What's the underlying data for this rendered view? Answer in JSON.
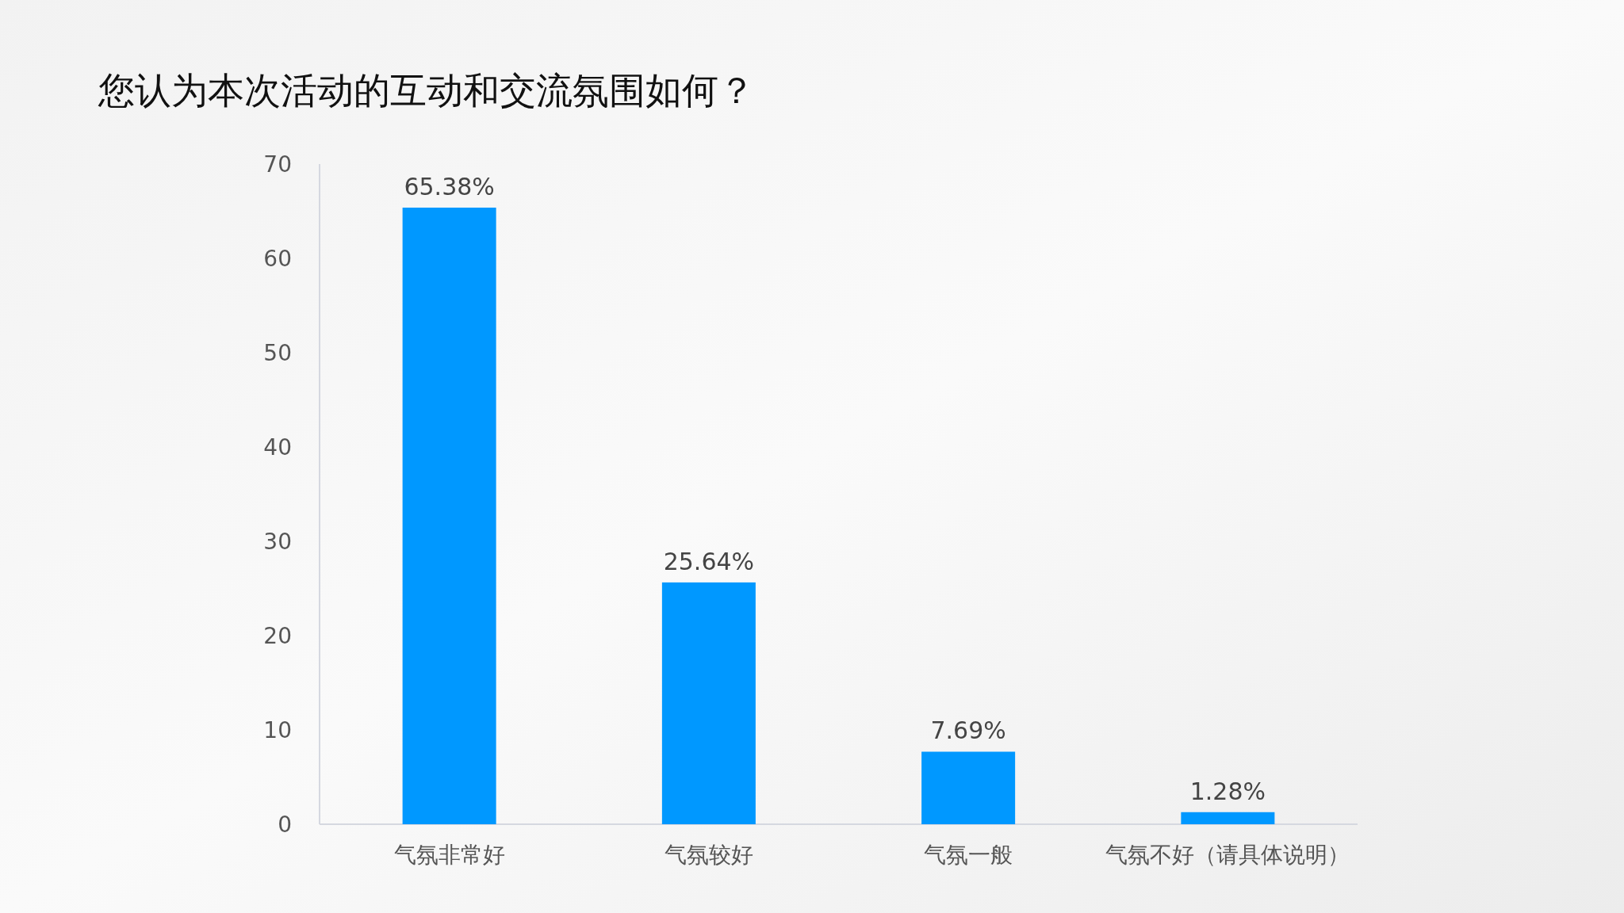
{
  "chart_data": {
    "type": "bar",
    "title": "您认为本次活动的互动和交流氛围如何？",
    "categories": [
      "气氛非常好",
      "气氛较好",
      "气氛一般",
      "气氛不好（请具体说明）"
    ],
    "values": [
      65.38,
      25.64,
      7.69,
      1.28
    ],
    "value_labels": [
      "65.38%",
      "25.64%",
      "7.69%",
      "1.28%"
    ],
    "color": "#0098ff",
    "ylim": [
      0,
      70
    ],
    "yticks": [
      0,
      10,
      20,
      30,
      40,
      50,
      60,
      70
    ],
    "grid": false,
    "legend": false
  }
}
